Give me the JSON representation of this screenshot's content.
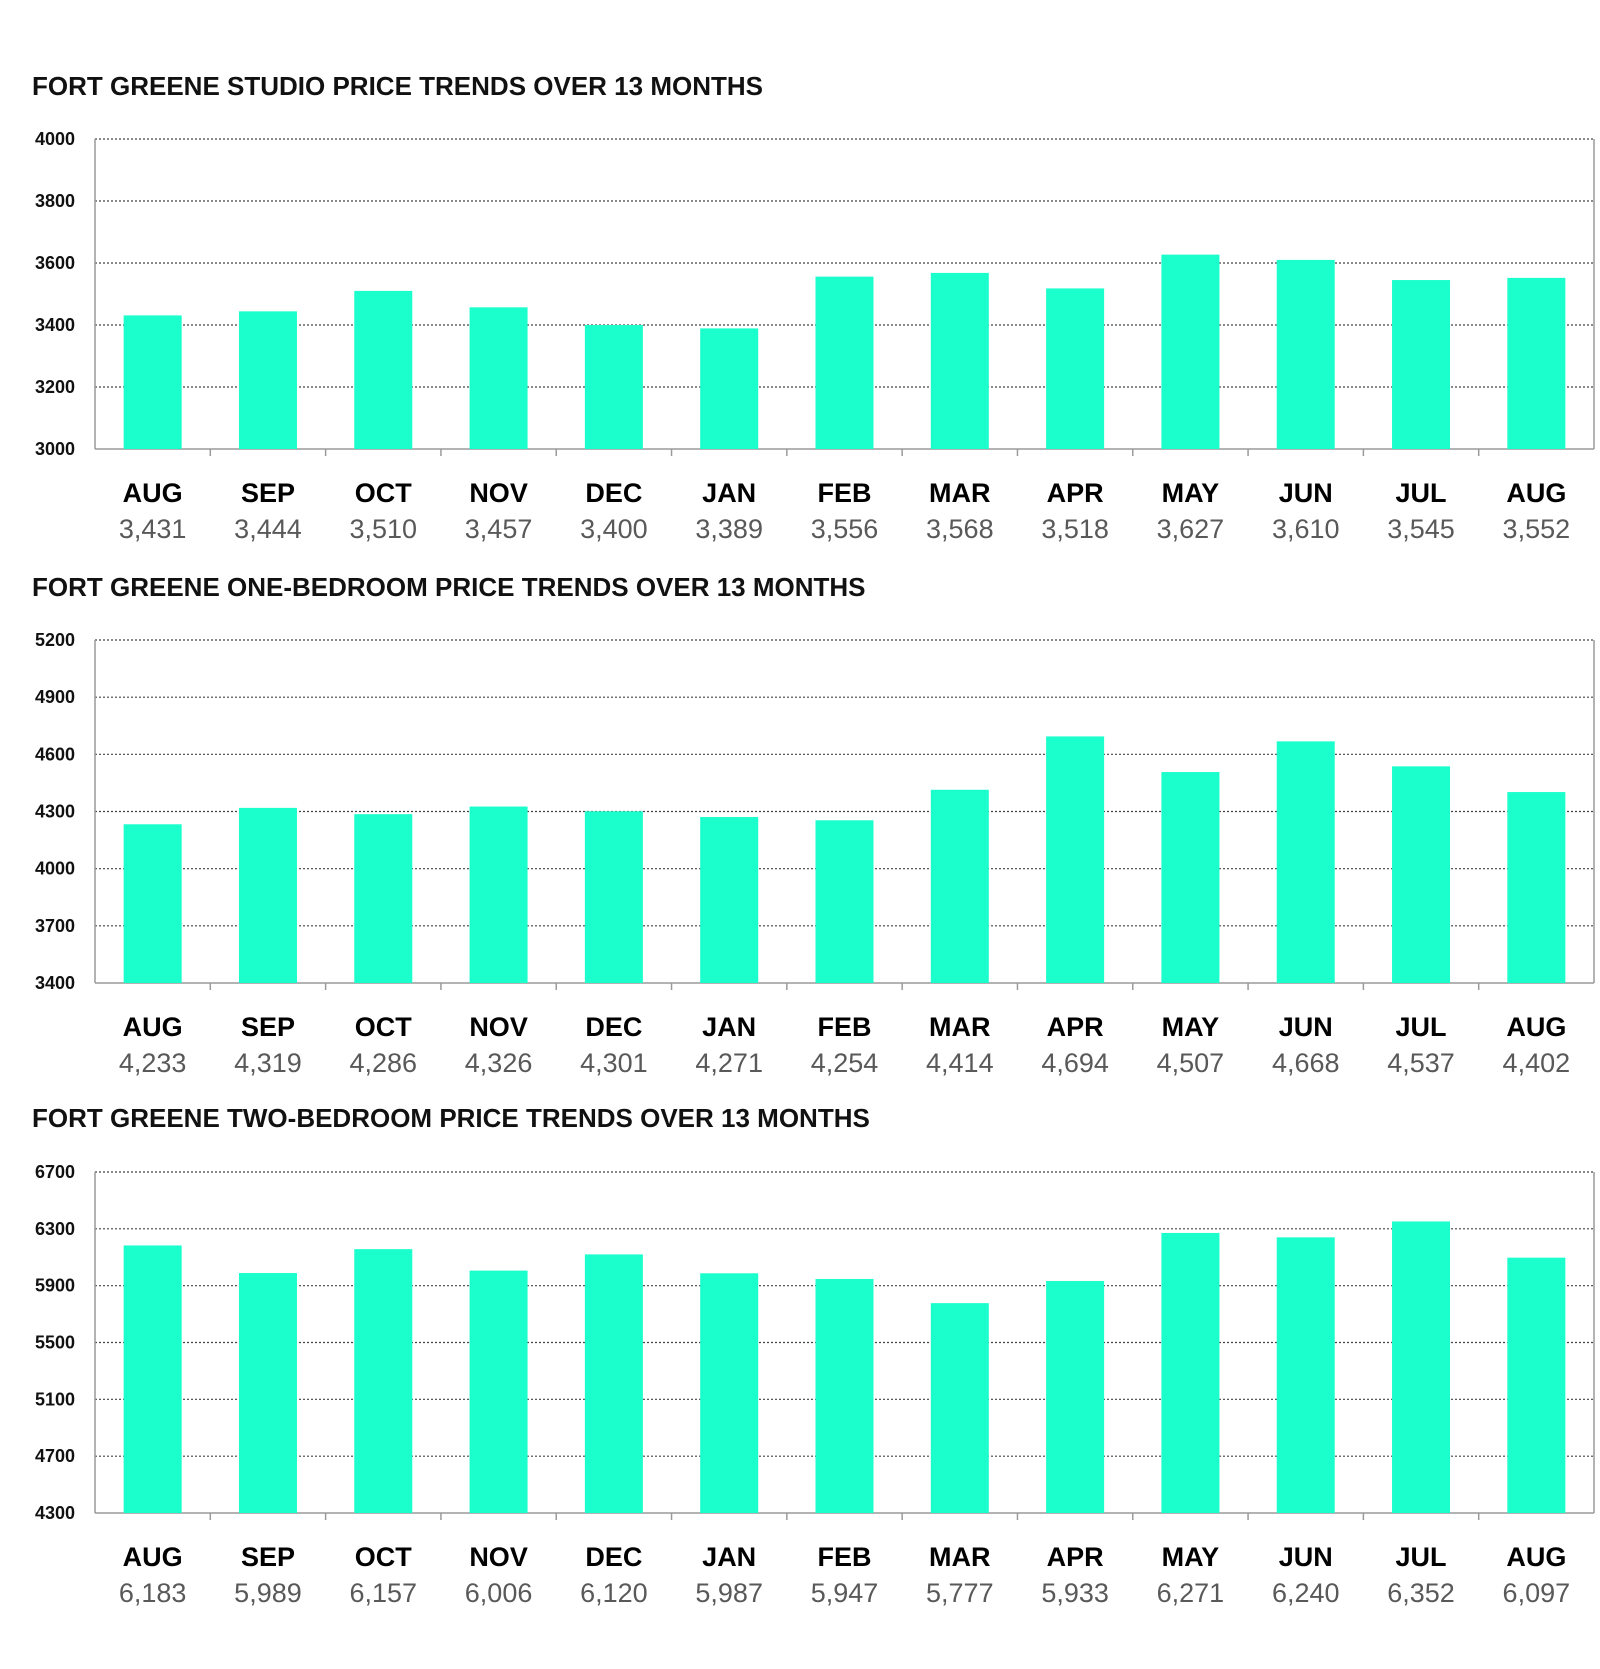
{
  "colors": {
    "bar": "#1affcc",
    "grid": "#444444",
    "axis": "#9a9a9a",
    "value_text": "#595959"
  },
  "chart_data": [
    {
      "type": "bar",
      "title": "FORT GREENE STUDIO PRICE TRENDS OVER 13 MONTHS",
      "categories": [
        "AUG",
        "SEP",
        "OCT",
        "NOV",
        "DEC",
        "JAN",
        "FEB",
        "MAR",
        "APR",
        "MAY",
        "JUN",
        "JUL",
        "AUG"
      ],
      "values": [
        3431,
        3444,
        3510,
        3457,
        3400,
        3389,
        3556,
        3568,
        3518,
        3627,
        3610,
        3545,
        3552
      ],
      "value_labels": [
        "3,431",
        "3,444",
        "3,510",
        "3,457",
        "3,400",
        "3,389",
        "3,556",
        "3,568",
        "3,518",
        "3,627",
        "3,610",
        "3,545",
        "3,552"
      ],
      "yticks": [
        "3000",
        "3200",
        "3400",
        "3600",
        "3800",
        "4000"
      ],
      "ylim": [
        3000,
        4000
      ],
      "grid": true
    },
    {
      "type": "bar",
      "title": "FORT GREENE ONE-BEDROOM PRICE TRENDS OVER 13 MONTHS",
      "categories": [
        "AUG",
        "SEP",
        "OCT",
        "NOV",
        "DEC",
        "JAN",
        "FEB",
        "MAR",
        "APR",
        "MAY",
        "JUN",
        "JUL",
        "AUG"
      ],
      "values": [
        4233,
        4319,
        4286,
        4326,
        4301,
        4271,
        4254,
        4414,
        4694,
        4507,
        4668,
        4537,
        4402
      ],
      "value_labels": [
        "4,233",
        "4,319",
        "4,286",
        "4,326",
        "4,301",
        "4,271",
        "4,254",
        "4,414",
        "4,694",
        "4,507",
        "4,668",
        "4,537",
        "4,402"
      ],
      "yticks": [
        "3400",
        "3700",
        "4000",
        "4300",
        "4600",
        "4900",
        "5200"
      ],
      "ylim": [
        3400,
        5200
      ],
      "grid": true
    },
    {
      "type": "bar",
      "title": "FORT GREENE TWO-BEDROOM PRICE TRENDS OVER 13 MONTHS",
      "categories": [
        "AUG",
        "SEP",
        "OCT",
        "NOV",
        "DEC",
        "JAN",
        "FEB",
        "MAR",
        "APR",
        "MAY",
        "JUN",
        "JUL",
        "AUG"
      ],
      "values": [
        6183,
        5989,
        6157,
        6006,
        6120,
        5987,
        5947,
        5777,
        5933,
        6271,
        6240,
        6352,
        6097
      ],
      "value_labels": [
        "6,183",
        "5,989",
        "6,157",
        "6,006",
        "6,120",
        "5,987",
        "5,947",
        "5,777",
        "5,933",
        "6,271",
        "6,240",
        "6,352",
        "6,097"
      ],
      "yticks": [
        "4300",
        "4700",
        "5100",
        "5500",
        "5900",
        "6300",
        "6700"
      ],
      "ylim": [
        4300,
        6700
      ],
      "grid": true
    }
  ]
}
